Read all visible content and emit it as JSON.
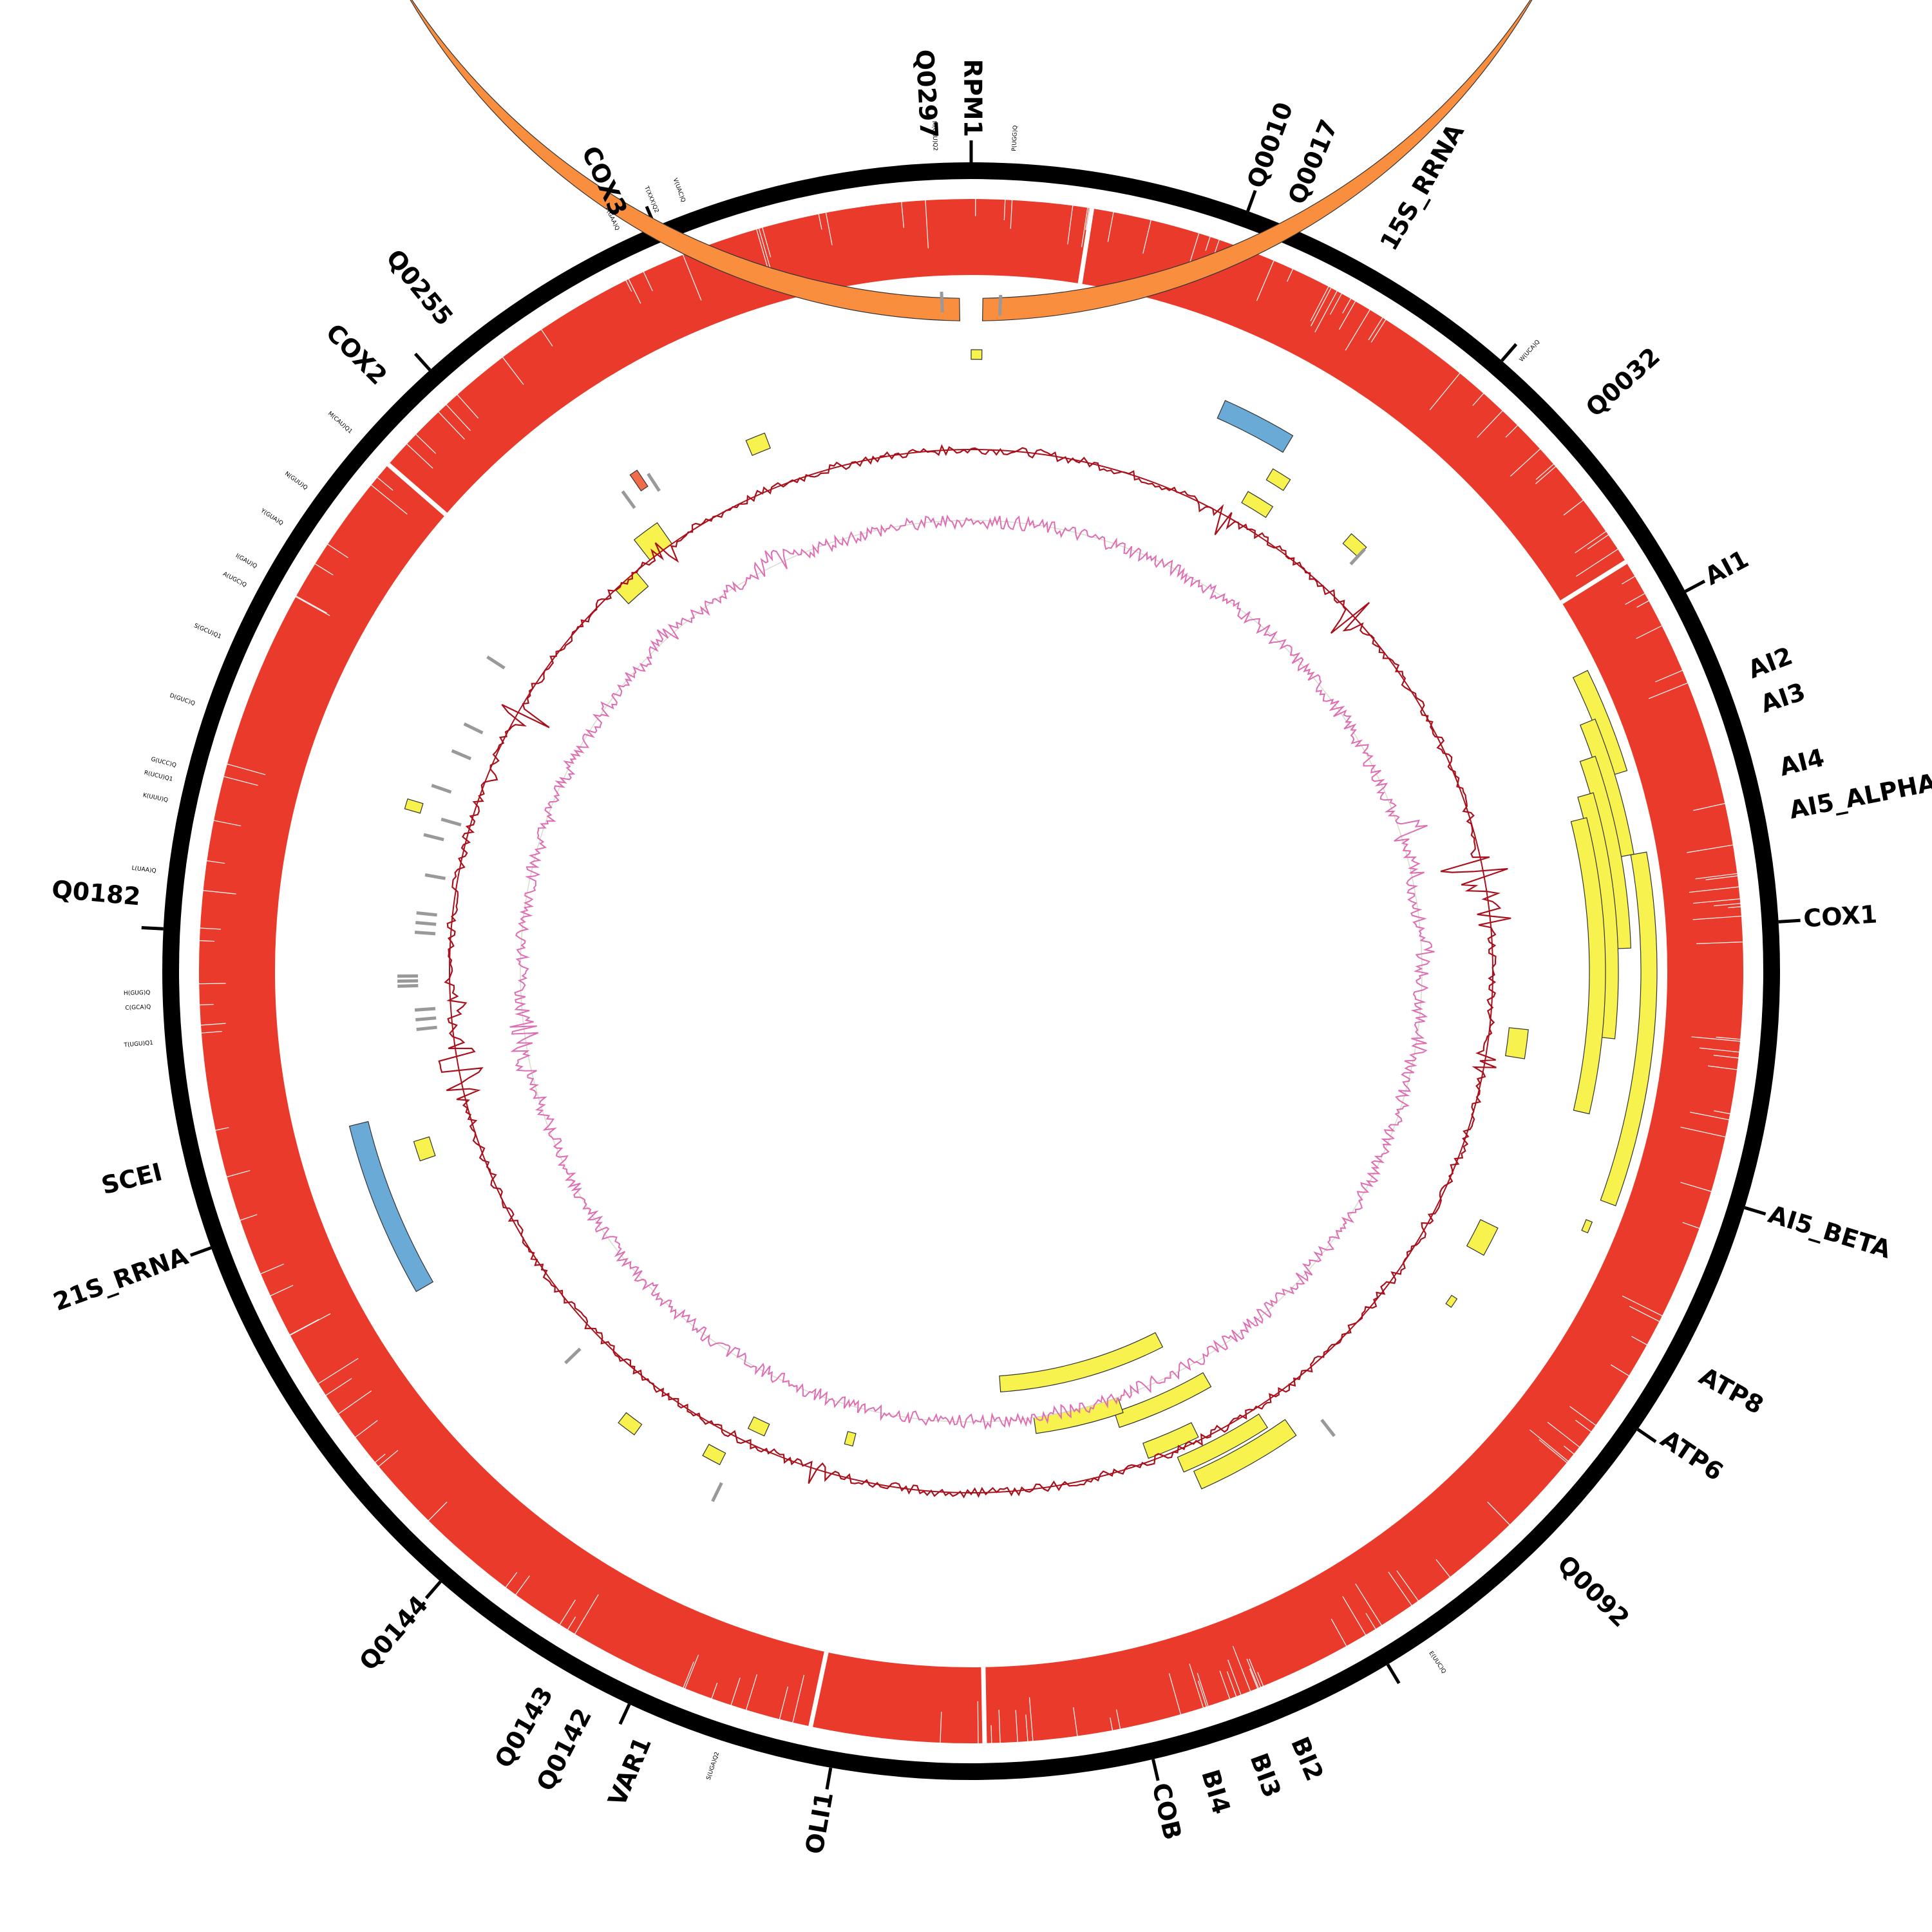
{
  "colors": {
    "backbone": "#000000",
    "coverage_ring": "#ea3a2b",
    "intron_exon": "#f7f24d",
    "rrna": "#6aaad6",
    "ncrna_orange": "#f98e3f",
    "ncrna_red": "#f26b4b",
    "trna": "#999999",
    "gc_skew": "#a8101c",
    "gc_content": "#de6db3"
  },
  "gene_labels": [
    {
      "text": "Q0297",
      "angle": 357
    },
    {
      "text": "RPM1",
      "angle": 0
    },
    {
      "text": "Q0010",
      "angle": 20
    },
    {
      "text": "Q0017",
      "angle": 23
    },
    {
      "text": "15S_RRNA",
      "angle": 30
    },
    {
      "text": "Q0032",
      "angle": 48
    },
    {
      "text": "AI1",
      "angle": 62
    },
    {
      "text": "AI2",
      "angle": 69
    },
    {
      "text": "AI3",
      "angle": 71.5
    },
    {
      "text": "AI4",
      "angle": 76
    },
    {
      "text": "AI5_ALPHA",
      "angle": 79
    },
    {
      "text": "COX1",
      "angle": 86.5
    },
    {
      "text": "AI5_BETA",
      "angle": 107
    },
    {
      "text": "ATP8",
      "angle": 119
    },
    {
      "text": "ATP6",
      "angle": 124
    },
    {
      "text": "Q0092",
      "angle": 135
    },
    {
      "text": "BI2",
      "angle": 157
    },
    {
      "text": "BI3",
      "angle": 160
    },
    {
      "text": "BI4",
      "angle": 163.5
    },
    {
      "text": "COB",
      "angle": 167
    },
    {
      "text": "OLI1",
      "angle": 190
    },
    {
      "text": "VAR1",
      "angle": 203
    },
    {
      "text": "Q0142",
      "angle": 207.5
    },
    {
      "text": "Q0143",
      "angle": 210.5
    },
    {
      "text": "Q0144",
      "angle": 221
    },
    {
      "text": "21S_RRNA",
      "angle": 250
    },
    {
      "text": "SCEI",
      "angle": 256
    },
    {
      "text": "Q0182",
      "angle": 275
    },
    {
      "text": "COX2",
      "angle": 315
    },
    {
      "text": "Q0255",
      "angle": 321
    },
    {
      "text": "COX3",
      "angle": 335
    }
  ],
  "trna_labels": [
    {
      "text": "M(CAU)Q2",
      "angle": 357.5
    },
    {
      "text": "P(UGG)Q",
      "angle": 3
    },
    {
      "text": "W(UCA)Q",
      "angle": 42
    },
    {
      "text": "E(UUC)Q",
      "angle": 146
    },
    {
      "text": "S(UGA)Q2",
      "angle": 198
    },
    {
      "text": "T(UGU)Q1",
      "angle": 265
    },
    {
      "text": "C(GCA)Q",
      "angle": 267.5
    },
    {
      "text": "H(GUG)Q",
      "angle": 268.5
    },
    {
      "text": "L(UAA)Q",
      "angle": 277
    },
    {
      "text": "K(UUU)Q",
      "angle": 282
    },
    {
      "text": "R(UCU)Q1",
      "angle": 283.5
    },
    {
      "text": "G(UCC)Q",
      "angle": 284.5
    },
    {
      "text": "D(GUC)Q",
      "angle": 289
    },
    {
      "text": "S(GCU)Q1",
      "angle": 294
    },
    {
      "text": "A(UGC)Q",
      "angle": 298
    },
    {
      "text": "I(GAU)Q",
      "angle": 299.5
    },
    {
      "text": "Y(GUA)Q",
      "angle": 303
    },
    {
      "text": "N(GUU)Q",
      "angle": 306
    },
    {
      "text": "M(CAU)Q1",
      "angle": 311
    },
    {
      "text": "F(GAA)Q",
      "angle": 334.5
    },
    {
      "text": "T(XXX)Q2",
      "angle": 337.5
    },
    {
      "text": "V(UAC)Q",
      "angle": 339.5
    }
  ]
}
